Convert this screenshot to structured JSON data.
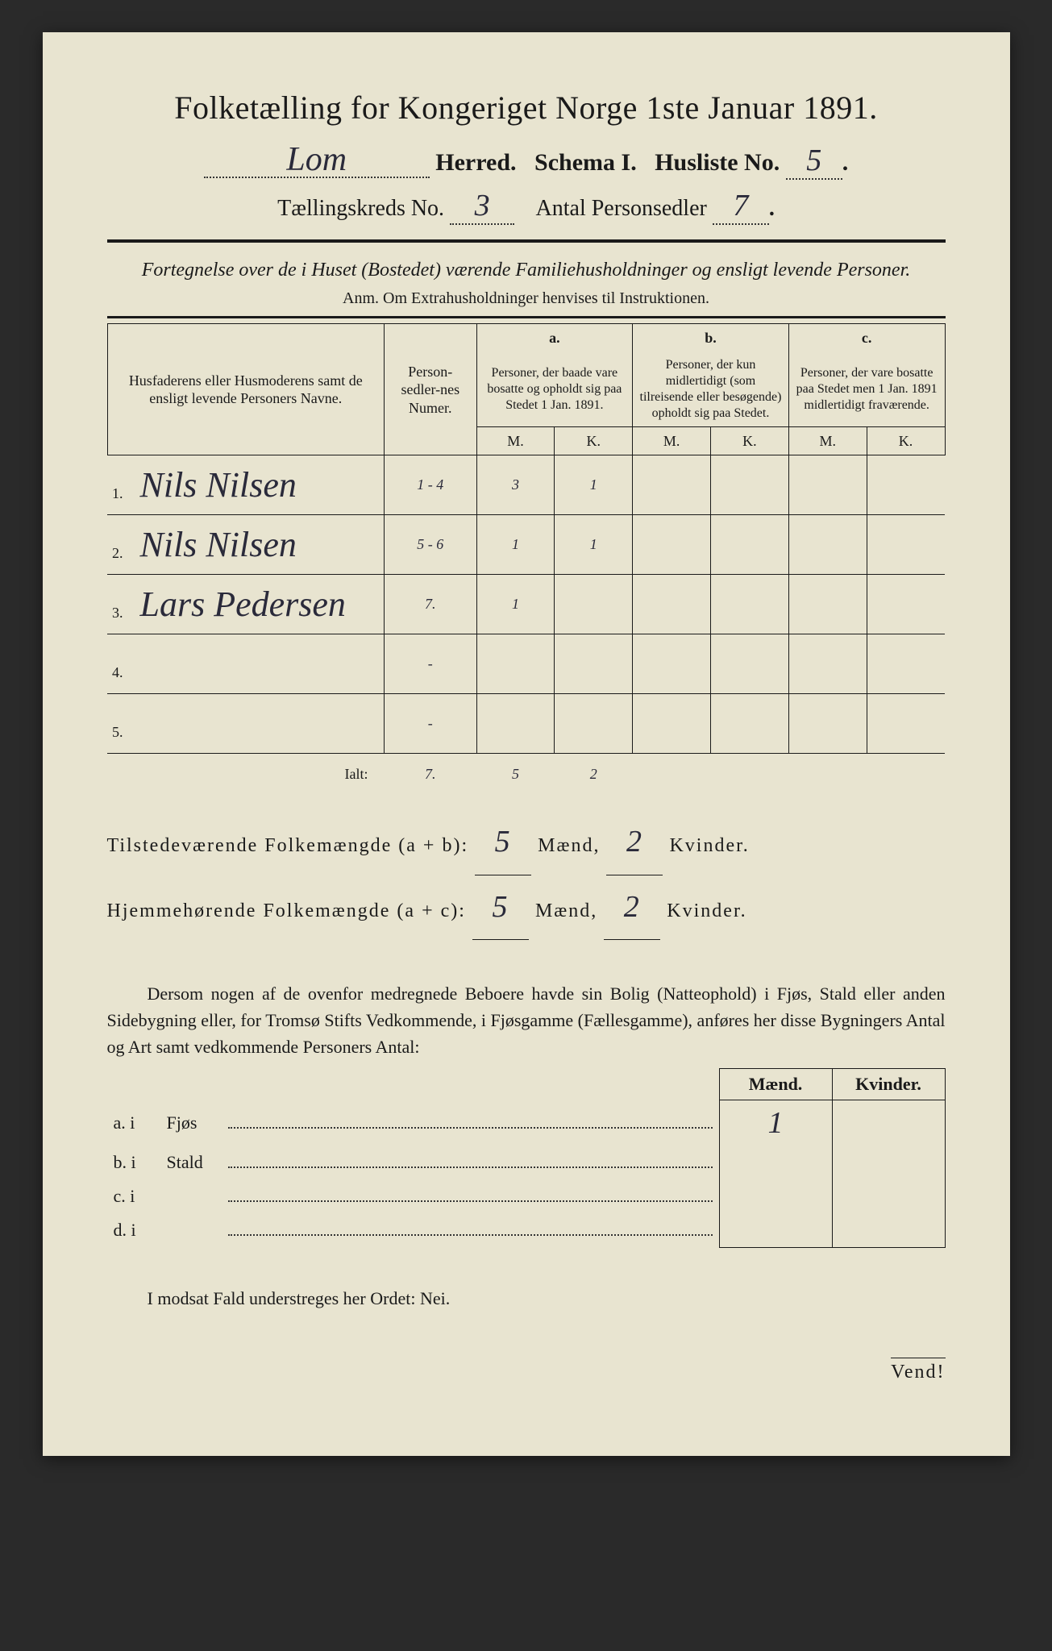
{
  "title": "Folketælling for Kongeriget Norge 1ste Januar 1891.",
  "header": {
    "herred_value": "Lom",
    "herred_label": "Herred.",
    "schema_label": "Schema I.",
    "husliste_label": "Husliste No.",
    "husliste_value": "5",
    "kreds_label": "Tællingskreds No.",
    "kreds_value": "3",
    "antal_label": "Antal Personsedler",
    "antal_value": "7"
  },
  "subtitle": "Fortegnelse over de i Huset (Bostedet) værende Familiehusholdninger og ensligt levende Personer.",
  "anm": "Anm.  Om Extrahusholdninger henvises til Instruktionen.",
  "table": {
    "head_name": "Husfaderens eller Husmoderens samt de ensligt levende Personers Navne.",
    "head_num": "Person-sedler-nes Numer.",
    "head_a_top": "a.",
    "head_a": "Personer, der baade vare bosatte og opholdt sig paa Stedet 1 Jan. 1891.",
    "head_b_top": "b.",
    "head_b": "Personer, der kun midlertidigt (som tilreisende eller besøgende) opholdt sig paa Stedet.",
    "head_c_top": "c.",
    "head_c": "Personer, der vare bosatte paa Stedet men 1 Jan. 1891 midlertidigt fraværende.",
    "mk_m": "M.",
    "mk_k": "K.",
    "rows": [
      {
        "n": "1.",
        "name": "Nils Nilsen",
        "num": "1 - 4",
        "am": "3",
        "ak": "1",
        "bm": "",
        "bk": "",
        "cm": "",
        "ck": ""
      },
      {
        "n": "2.",
        "name": "Nils Nilsen",
        "num": "5 - 6",
        "am": "1",
        "ak": "1",
        "bm": "",
        "bk": "",
        "cm": "",
        "ck": ""
      },
      {
        "n": "3.",
        "name": "Lars Pedersen",
        "num": "7.",
        "am": "1",
        "ak": "",
        "bm": "",
        "bk": "",
        "cm": "",
        "ck": ""
      },
      {
        "n": "4.",
        "name": "",
        "num": "-",
        "am": "",
        "ak": "",
        "bm": "",
        "bk": "",
        "cm": "",
        "ck": ""
      },
      {
        "n": "5.",
        "name": "",
        "num": "-",
        "am": "",
        "ak": "",
        "bm": "",
        "bk": "",
        "cm": "",
        "ck": ""
      }
    ],
    "ialt_label": "Ialt:",
    "ialt_num": "7.",
    "ialt_am": "5",
    "ialt_ak": "2"
  },
  "totals": {
    "line1_label": "Tilstedeværende Folkemængde (a + b):",
    "line1_m": "5",
    "line1_k": "2",
    "line2_label": "Hjemmehørende Folkemængde (a + c):",
    "line2_m": "5",
    "line2_k": "2",
    "maend": "Mænd,",
    "kvinder": "Kvinder."
  },
  "paragraph": "Dersom nogen af de ovenfor medregnede Beboere havde sin Bolig (Natteophold) i Fjøs, Stald eller anden Sidebygning eller, for Tromsø Stifts Vedkommende, i Fjøsgamme (Fællesgamme), anføres her disse Bygningers Antal og Art samt vedkommende Personers Antal:",
  "mk": {
    "maend": "Mænd.",
    "kvinder": "Kvinder.",
    "rows": [
      {
        "label_a": "a.  i",
        "label_b": "Fjøs",
        "m": "1",
        "k": ""
      },
      {
        "label_a": "b.  i",
        "label_b": "Stald",
        "m": "",
        "k": ""
      },
      {
        "label_a": "c.  i",
        "label_b": "",
        "m": "",
        "k": ""
      },
      {
        "label_a": "d.  i",
        "label_b": "",
        "m": "",
        "k": ""
      }
    ]
  },
  "nei": "I modsat Fald understreges her Ordet: Nei.",
  "vend": "Vend!"
}
